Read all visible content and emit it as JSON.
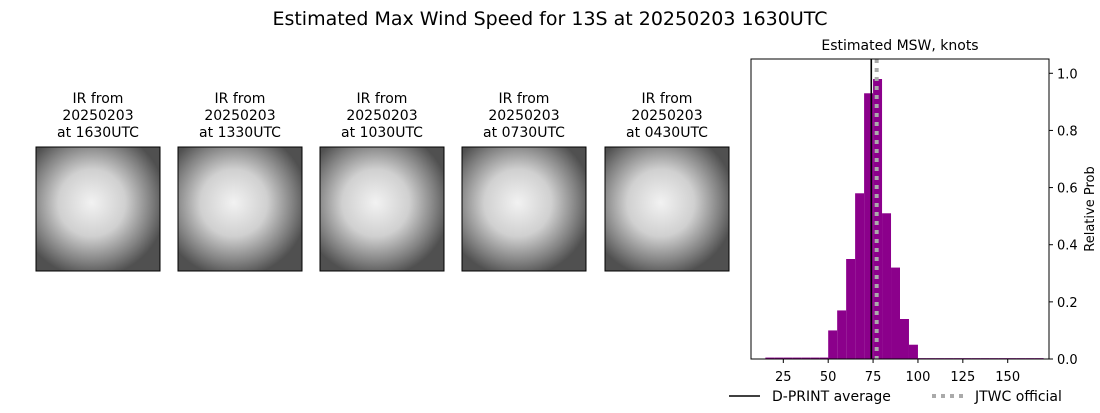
{
  "title": "Estimated Max Wind Speed for 13S at 20250203 1630UTC",
  "images": [
    {
      "title_lines": [
        "IR from",
        "20250203",
        "at 1630UTC"
      ]
    },
    {
      "title_lines": [
        "IR from",
        "20250203",
        "at 1330UTC"
      ]
    },
    {
      "title_lines": [
        "IR from",
        "20250203",
        "at 1030UTC"
      ]
    },
    {
      "title_lines": [
        "IR from",
        "20250203",
        "at 0730UTC"
      ]
    },
    {
      "title_lines": [
        "IR from",
        "20250203",
        "at 0430UTC"
      ]
    }
  ],
  "chart_data": {
    "type": "histogram",
    "title": "Estimated MSW, knots",
    "y_label": "Relative Prob",
    "y_axis_side": "right",
    "color": "#8b008b",
    "bins": [
      15,
      20,
      25,
      30,
      35,
      40,
      45,
      50,
      55,
      60,
      65,
      70,
      75,
      80,
      85,
      90,
      95,
      100,
      105,
      110,
      115,
      120,
      125,
      130,
      135,
      140,
      145,
      150,
      155,
      160,
      165,
      170
    ],
    "values": [
      0.005,
      0.005,
      0.005,
      0.005,
      0.005,
      0.005,
      0.005,
      0.1,
      0.17,
      0.35,
      0.58,
      0.93,
      0.98,
      0.51,
      0.32,
      0.14,
      0.05,
      0.003,
      0.003,
      0.003,
      0.003,
      0.003,
      0.003,
      0.003,
      0.003,
      0.003,
      0.003,
      0.003,
      0.003,
      0.003,
      0.003
    ],
    "xlim": [
      7,
      173
    ],
    "ylim": [
      0,
      1.05
    ],
    "xticks": [
      25,
      50,
      75,
      100,
      125,
      150
    ],
    "yticks": [
      {
        "value": 0,
        "label": "0.0"
      },
      0.2,
      0.4,
      0.6,
      0.8,
      {
        "value": 1,
        "label": "1.0"
      }
    ],
    "lines": [
      {
        "name": "D-PRINT average",
        "value": 74,
        "color": "#000000",
        "style": "solid"
      },
      {
        "name": "JTWC official",
        "value": 77,
        "color": "#aaaaaa",
        "style": "dotted"
      }
    ],
    "legend": "lower center"
  }
}
